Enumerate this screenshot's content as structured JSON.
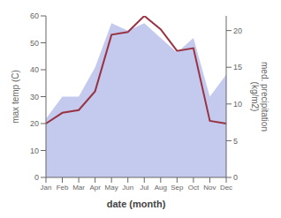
{
  "chart_data": {
    "type": "line",
    "categories": [
      "Jan",
      "Feb",
      "Mar",
      "Apr",
      "May",
      "Jun",
      "Jul",
      "Aug",
      "Sep",
      "Oct",
      "Nov",
      "Dec"
    ],
    "series": [
      {
        "type": "area",
        "axis": "y2",
        "color": "#b0b8e8",
        "values": [
          8,
          11,
          11,
          15,
          21,
          20,
          21,
          19,
          17,
          19,
          11,
          14
        ]
      },
      {
        "type": "line",
        "color": "#993344",
        "values": [
          20,
          24,
          25,
          32,
          53,
          54,
          60,
          55,
          47,
          48,
          21,
          20
        ]
      }
    ],
    "xlabel": "date (month)",
    "ylabel": "max temp (C)",
    "y2label": "med. precipitation\n(kg/m2)",
    "ylim": [
      0,
      60
    ],
    "yticks": [
      0,
      10,
      20,
      30,
      40,
      50,
      60
    ],
    "y2lim": [
      0,
      22
    ],
    "y2ticks": [
      0,
      5,
      10,
      15,
      20
    ],
    "grid": false
  }
}
